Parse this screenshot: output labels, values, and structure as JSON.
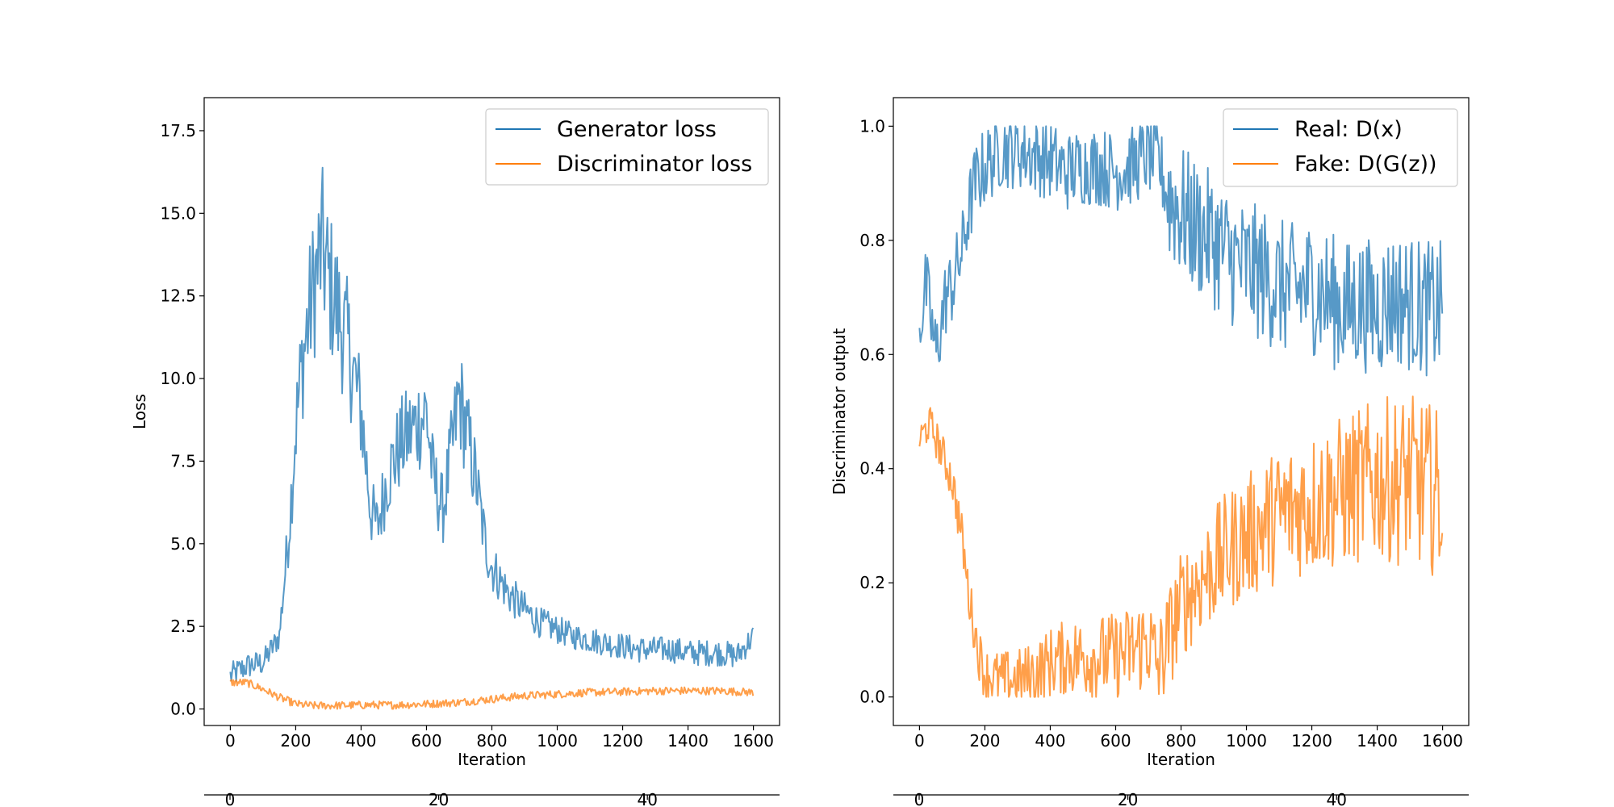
{
  "chart_data": [
    {
      "type": "line",
      "title": "",
      "xlabel": "Iteration",
      "ylabel": "Loss",
      "xlim": [
        -80,
        1680
      ],
      "ylim": [
        -0.5,
        18.5
      ],
      "x_ticks": [
        "0",
        "200",
        "400",
        "600",
        "800",
        "1000",
        "1200",
        "1400",
        "1600"
      ],
      "y_ticks": [
        "0.0",
        "2.5",
        "5.0",
        "7.5",
        "10.0",
        "12.5",
        "15.0",
        "17.5"
      ],
      "secondary_x_ticks": [
        "0",
        "20",
        "40"
      ],
      "legend_position": "top-right",
      "grid": false,
      "colors": [
        "#1f77b4",
        "#ff7f0e"
      ],
      "series": [
        {
          "name": "Generator loss",
          "x": [
            0,
            50,
            100,
            150,
            180,
            200,
            220,
            250,
            280,
            300,
            330,
            360,
            400,
            430,
            450,
            480,
            520,
            560,
            600,
            620,
            650,
            680,
            700,
            720,
            750,
            780,
            800,
            850,
            900,
            950,
            1000,
            1050,
            1100,
            1150,
            1200,
            1250,
            1300,
            1350,
            1400,
            1450,
            1500,
            1550,
            1600
          ],
          "values": [
            1.0,
            1.3,
            1.4,
            2.2,
            5.5,
            8.5,
            10.5,
            12.5,
            14.0,
            13.0,
            12.0,
            11.0,
            9.0,
            6.0,
            5.5,
            7.0,
            8.0,
            8.5,
            9.0,
            7.0,
            6.0,
            8.0,
            9.5,
            8.5,
            7.0,
            5.0,
            4.3,
            3.5,
            3.0,
            2.6,
            2.4,
            2.2,
            2.1,
            2.0,
            1.9,
            1.8,
            1.8,
            1.8,
            1.7,
            1.7,
            1.7,
            1.6,
            2.2
          ]
        },
        {
          "name": "Discriminator loss",
          "x": [
            0,
            50,
            100,
            150,
            200,
            250,
            300,
            400,
            500,
            600,
            700,
            800,
            900,
            1000,
            1100,
            1200,
            1300,
            1400,
            1500,
            1600
          ],
          "values": [
            0.8,
            0.8,
            0.6,
            0.35,
            0.15,
            0.1,
            0.1,
            0.12,
            0.12,
            0.15,
            0.2,
            0.3,
            0.4,
            0.45,
            0.5,
            0.52,
            0.55,
            0.55,
            0.55,
            0.5
          ]
        }
      ]
    },
    {
      "type": "line",
      "title": "",
      "xlabel": "Iteration",
      "ylabel": "Discriminator output",
      "xlim": [
        -80,
        1680
      ],
      "ylim": [
        -0.05,
        1.05
      ],
      "x_ticks": [
        "0",
        "200",
        "400",
        "600",
        "800",
        "1000",
        "1200",
        "1400",
        "1600"
      ],
      "y_ticks": [
        "0.0",
        "0.2",
        "0.4",
        "0.6",
        "0.8",
        "1.0"
      ],
      "secondary_x_ticks": [
        "0",
        "20",
        "40"
      ],
      "legend_position": "top-right",
      "grid": false,
      "colors": [
        "#1f77b4",
        "#ff7f0e"
      ],
      "series": [
        {
          "name": "Real: D(x)",
          "x": [
            0,
            20,
            50,
            80,
            100,
            130,
            150,
            170,
            200,
            250,
            300,
            350,
            400,
            450,
            500,
            550,
            600,
            650,
            700,
            730,
            760,
            800,
            850,
            900,
            950,
            1000,
            1050,
            1100,
            1150,
            1200,
            1250,
            1300,
            1350,
            1400,
            1450,
            1500,
            1550,
            1600
          ],
          "values": [
            0.65,
            0.72,
            0.6,
            0.7,
            0.72,
            0.78,
            0.85,
            0.9,
            0.93,
            0.96,
            0.96,
            0.95,
            0.94,
            0.92,
            0.93,
            0.93,
            0.92,
            0.93,
            0.95,
            0.94,
            0.88,
            0.85,
            0.82,
            0.8,
            0.77,
            0.75,
            0.74,
            0.72,
            0.71,
            0.72,
            0.7,
            0.68,
            0.69,
            0.68,
            0.7,
            0.69,
            0.68,
            0.68
          ]
        },
        {
          "name": "Fake: D(G(z))",
          "x": [
            0,
            30,
            60,
            100,
            130,
            150,
            180,
            200,
            250,
            300,
            350,
            400,
            450,
            500,
            550,
            600,
            650,
            700,
            730,
            760,
            800,
            850,
            900,
            950,
            1000,
            1050,
            1100,
            1150,
            1200,
            1250,
            1300,
            1350,
            1400,
            1450,
            1500,
            1550,
            1600
          ],
          "values": [
            0.45,
            0.48,
            0.44,
            0.38,
            0.28,
            0.18,
            0.08,
            0.04,
            0.03,
            0.03,
            0.04,
            0.06,
            0.07,
            0.07,
            0.07,
            0.07,
            0.08,
            0.1,
            0.05,
            0.1,
            0.16,
            0.2,
            0.23,
            0.26,
            0.28,
            0.3,
            0.32,
            0.33,
            0.34,
            0.35,
            0.36,
            0.37,
            0.38,
            0.38,
            0.38,
            0.37,
            0.35
          ]
        }
      ]
    }
  ]
}
